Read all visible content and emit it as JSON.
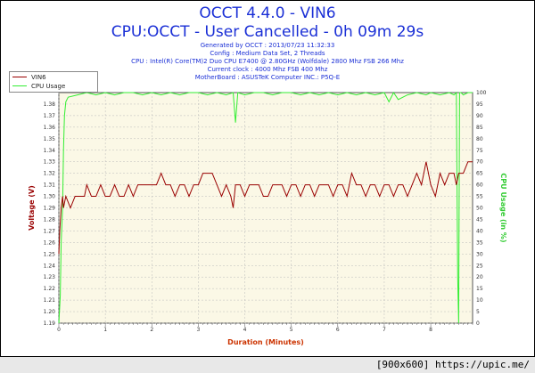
{
  "header": {
    "title": "OCCT 4.4.0 - VIN6",
    "subtitle": "CPU:OCCT - User Cancelled - 0h 09m 29s",
    "info_lines": [
      "Generated by OCCT : 2013/07/23 11:32:33",
      "Config : Medium Data Set, 2 Threads",
      "CPU : Intel(R) Core(TM)2 Duo CPU E7400 @ 2.80GHz (Wolfdale) 2800 Mhz FSB 266 Mhz",
      "Current clock : 4000 Mhz FSB 400 Mhz",
      "MotherBoard : ASUSTeK Computer INC.: P5Q-E"
    ]
  },
  "footer": {
    "label": "[900x600] https://upic.me/"
  },
  "colors": {
    "vin6": "#990000",
    "cpu": "#33ee33",
    "plot_bg": "#fbf8e6",
    "grid": "#bbbbbb",
    "title": "#1a2fd6",
    "axis_left": "#990000",
    "axis_right": "#33cc33",
    "axis_x": "#cc3300"
  },
  "chart_data": {
    "type": "line",
    "title": "OCCT 4.4.0 - VIN6",
    "xlabel": "Duration (Minutes)",
    "ylabel_left": "Voltage (V)",
    "ylabel_right": "CPU Usage (in %)",
    "xlim": [
      0,
      8.9
    ],
    "ylim_left": [
      1.19,
      1.39
    ],
    "ylim_right": [
      0,
      100
    ],
    "x_ticks": [
      "0",
      "1",
      "2",
      "3",
      "4",
      "5",
      "6",
      "7",
      "8"
    ],
    "y_left_ticks": [
      "1.19",
      "1.20",
      "1.21",
      "1.22",
      "1.23",
      "1.24",
      "1.25",
      "1.26",
      "1.27",
      "1.28",
      "1.29",
      "1.30",
      "1.31",
      "1.32",
      "1.33",
      "1.34",
      "1.35",
      "1.36",
      "1.37",
      "1.38"
    ],
    "y_right_ticks": [
      "0",
      "5",
      "10",
      "15",
      "20",
      "25",
      "30",
      "35",
      "40",
      "45",
      "50",
      "55",
      "60",
      "65",
      "70",
      "75",
      "80",
      "85",
      "90",
      "95",
      "100"
    ],
    "grid": true,
    "legend_position": "top-left",
    "series": [
      {
        "name": "VIN6",
        "axis": "left",
        "x": [
          0,
          0.02,
          0.05,
          0.08,
          0.1,
          0.15,
          0.25,
          0.35,
          0.45,
          0.55,
          0.6,
          0.7,
          0.8,
          0.9,
          1.0,
          1.1,
          1.2,
          1.3,
          1.4,
          1.5,
          1.6,
          1.7,
          1.8,
          1.9,
          2.0,
          2.1,
          2.2,
          2.3,
          2.4,
          2.5,
          2.6,
          2.7,
          2.8,
          2.9,
          3.0,
          3.1,
          3.2,
          3.3,
          3.4,
          3.5,
          3.6,
          3.7,
          3.75,
          3.8,
          3.9,
          4.0,
          4.1,
          4.2,
          4.3,
          4.4,
          4.5,
          4.6,
          4.7,
          4.8,
          4.9,
          5.0,
          5.1,
          5.2,
          5.3,
          5.4,
          5.5,
          5.6,
          5.7,
          5.8,
          5.9,
          6.0,
          6.1,
          6.2,
          6.3,
          6.4,
          6.5,
          6.6,
          6.7,
          6.8,
          6.9,
          7.0,
          7.1,
          7.2,
          7.3,
          7.4,
          7.5,
          7.6,
          7.7,
          7.8,
          7.9,
          8.0,
          8.1,
          8.2,
          8.3,
          8.4,
          8.5,
          8.55,
          8.6,
          8.7,
          8.8,
          8.9
        ],
        "values": [
          1.25,
          1.27,
          1.29,
          1.3,
          1.29,
          1.3,
          1.29,
          1.3,
          1.3,
          1.3,
          1.31,
          1.3,
          1.3,
          1.31,
          1.3,
          1.3,
          1.31,
          1.3,
          1.3,
          1.31,
          1.3,
          1.31,
          1.31,
          1.31,
          1.31,
          1.31,
          1.32,
          1.31,
          1.31,
          1.3,
          1.31,
          1.31,
          1.3,
          1.31,
          1.31,
          1.32,
          1.32,
          1.32,
          1.31,
          1.3,
          1.31,
          1.3,
          1.29,
          1.31,
          1.31,
          1.3,
          1.31,
          1.31,
          1.31,
          1.3,
          1.3,
          1.31,
          1.31,
          1.31,
          1.3,
          1.31,
          1.31,
          1.3,
          1.31,
          1.31,
          1.3,
          1.31,
          1.31,
          1.31,
          1.3,
          1.31,
          1.31,
          1.3,
          1.32,
          1.31,
          1.31,
          1.3,
          1.31,
          1.31,
          1.3,
          1.31,
          1.31,
          1.3,
          1.31,
          1.31,
          1.3,
          1.31,
          1.32,
          1.31,
          1.33,
          1.31,
          1.3,
          1.32,
          1.31,
          1.32,
          1.32,
          1.31,
          1.32,
          1.32,
          1.33,
          1.33
        ]
      },
      {
        "name": "CPU Usage",
        "axis": "right",
        "x": [
          0,
          0.03,
          0.05,
          0.08,
          0.1,
          0.12,
          0.15,
          0.2,
          0.4,
          0.6,
          0.8,
          1.0,
          1.2,
          1.4,
          1.6,
          1.8,
          2.0,
          2.2,
          2.4,
          2.6,
          2.8,
          3.0,
          3.2,
          3.4,
          3.6,
          3.75,
          3.8,
          3.85,
          4.0,
          4.2,
          4.4,
          4.6,
          4.8,
          5.0,
          5.2,
          5.4,
          5.6,
          5.8,
          6.0,
          6.2,
          6.4,
          6.6,
          6.8,
          7.0,
          7.1,
          7.2,
          7.3,
          7.5,
          7.7,
          7.9,
          8.0,
          8.2,
          8.4,
          8.5,
          8.55,
          8.58,
          8.6,
          8.62,
          8.65,
          8.7,
          8.8,
          8.9
        ],
        "values": [
          0,
          12,
          35,
          50,
          75,
          90,
          96,
          98,
          99,
          100,
          99,
          100,
          99,
          100,
          100,
          99,
          100,
          99,
          100,
          99,
          100,
          100,
          99,
          100,
          99,
          100,
          87,
          100,
          99,
          100,
          100,
          99,
          100,
          100,
          99,
          100,
          99,
          100,
          99,
          100,
          99,
          100,
          99,
          100,
          96,
          100,
          97,
          99,
          100,
          99,
          100,
          99,
          100,
          99,
          100,
          20,
          0,
          100,
          100,
          99,
          100,
          100
        ]
      }
    ]
  }
}
